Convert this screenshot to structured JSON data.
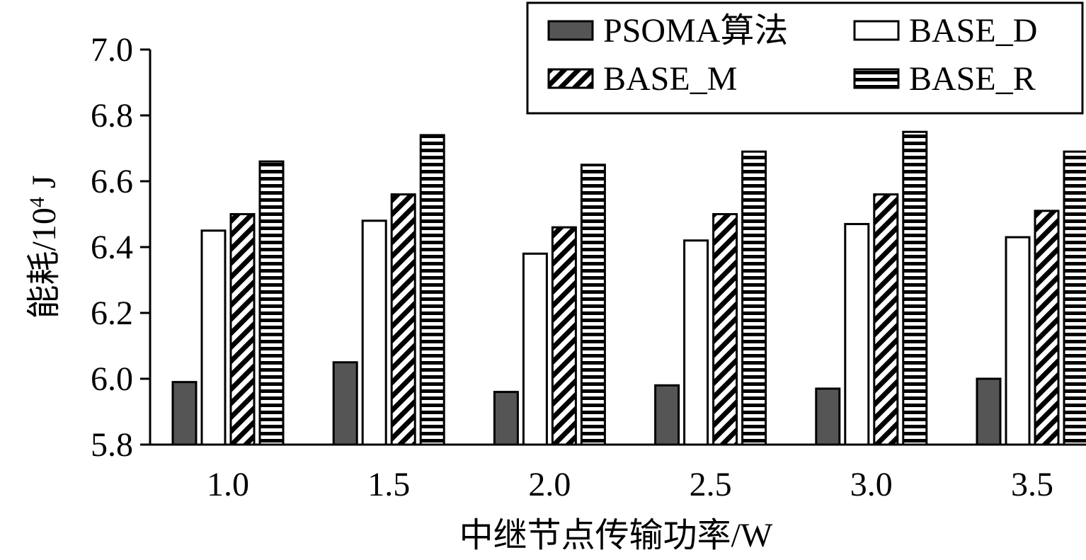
{
  "chart_data": {
    "type": "bar",
    "title": "",
    "xlabel": "中继节点传输功率/W",
    "ylabel_main": "能耗/10",
    "ylabel_sup": "4",
    "ylabel_unit": " J",
    "ylim": [
      5.8,
      7.0
    ],
    "yticks": [
      "5.8",
      "6.0",
      "6.2",
      "6.4",
      "6.6",
      "6.8",
      "7.0"
    ],
    "categories": [
      "1.0",
      "1.5",
      "2.0",
      "2.5",
      "3.0",
      "3.5"
    ],
    "legend_placement": "top-right",
    "series": [
      {
        "name": "PSOMA算法",
        "pattern": "solid",
        "color": "#555555",
        "values": [
          5.99,
          6.05,
          5.96,
          5.98,
          5.97,
          6.0
        ]
      },
      {
        "name": "BASE_D",
        "pattern": "empty",
        "color": "#ffffff",
        "values": [
          6.45,
          6.48,
          6.38,
          6.42,
          6.47,
          6.43
        ]
      },
      {
        "name": "BASE_M",
        "pattern": "diagonal",
        "color": "#000000",
        "values": [
          6.5,
          6.56,
          6.46,
          6.5,
          6.56,
          6.51
        ]
      },
      {
        "name": "BASE_R",
        "pattern": "horizontal",
        "color": "#000000",
        "values": [
          6.66,
          6.74,
          6.65,
          6.69,
          6.75,
          6.69
        ]
      }
    ]
  }
}
